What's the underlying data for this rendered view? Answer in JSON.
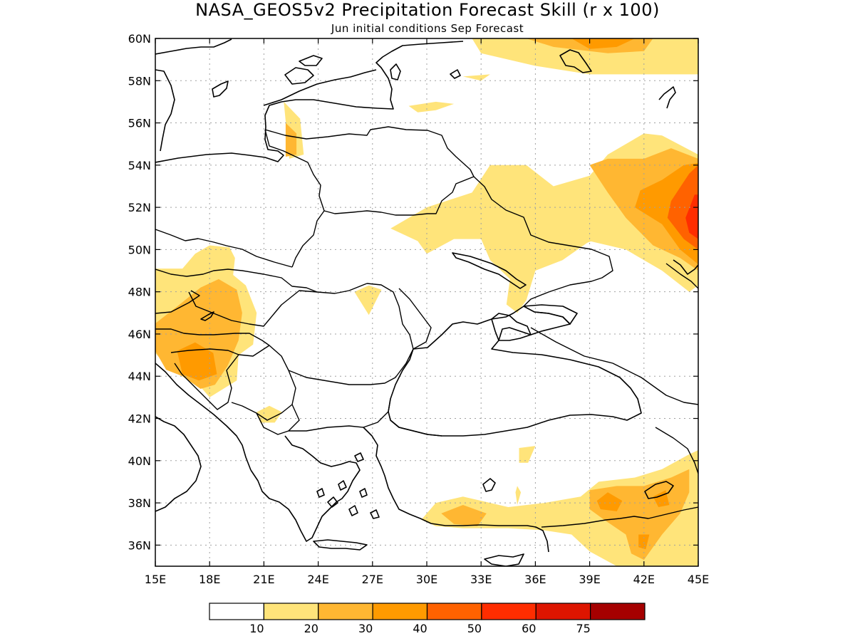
{
  "title": "NASA_GEOS5v2 Precipitation Forecast Skill (r x 100)",
  "subtitle": "Jun initial conditions  Sep Forecast",
  "map": {
    "lon_range": [
      15,
      45
    ],
    "lat_range": [
      35,
      60
    ],
    "lon_ticks": [
      "15E",
      "18E",
      "21E",
      "24E",
      "27E",
      "30E",
      "33E",
      "36E",
      "39E",
      "42E",
      "45E"
    ],
    "lat_ticks": [
      "60N",
      "58N",
      "56N",
      "54N",
      "52N",
      "50N",
      "48N",
      "46N",
      "44N",
      "42N",
      "40N",
      "38N",
      "36N"
    ],
    "grid": true
  },
  "colorbar": {
    "colors": [
      "#ffffff",
      "#ffe47a",
      "#ffb732",
      "#ff9a00",
      "#ff6200",
      "#ff2d00",
      "#dd1500",
      "#a50000"
    ],
    "labels": [
      "10",
      "20",
      "30",
      "40",
      "50",
      "60",
      "75"
    ]
  },
  "chart_data": {
    "type": "heatmap",
    "title": "NASA_GEOS5v2 Precipitation Forecast Skill (r x 100)",
    "subtitle": "Jun initial conditions  Sep Forecast",
    "x_range": [
      15,
      45
    ],
    "y_range": [
      35,
      60
    ],
    "levels": [
      10,
      20,
      30,
      40,
      50,
      60,
      75
    ],
    "regions": [
      {
        "level": 10,
        "points": [
          [
            32.5,
            60
          ],
          [
            45,
            60
          ],
          [
            45,
            58.3
          ],
          [
            42,
            58.3
          ],
          [
            39,
            58.3
          ],
          [
            36,
            58.7
          ],
          [
            33,
            59.3
          ]
        ]
      },
      {
        "level": 20,
        "points": [
          [
            35.5,
            60
          ],
          [
            42.5,
            60
          ],
          [
            42,
            59.4
          ],
          [
            40,
            59.3
          ],
          [
            37,
            59.6
          ]
        ]
      },
      {
        "level": 30,
        "points": [
          [
            38,
            60
          ],
          [
            41.5,
            60
          ],
          [
            40.5,
            59.6
          ],
          [
            39,
            59.5
          ]
        ]
      },
      {
        "level": 10,
        "points": [
          [
            29,
            56.8
          ],
          [
            30.5,
            57
          ],
          [
            31.5,
            56.9
          ],
          [
            30.5,
            56.6
          ],
          [
            29.5,
            56.5
          ]
        ]
      },
      {
        "level": 10,
        "points": [
          [
            32,
            58.2
          ],
          [
            33.5,
            58.3
          ],
          [
            33,
            58
          ]
        ]
      },
      {
        "level": 10,
        "points": [
          [
            22.1,
            57
          ],
          [
            23,
            56.2
          ],
          [
            23.2,
            54.5
          ],
          [
            22.4,
            54.3
          ]
        ]
      },
      {
        "level": 20,
        "points": [
          [
            22.2,
            56
          ],
          [
            22.8,
            55.5
          ],
          [
            22.8,
            54.5
          ],
          [
            22.2,
            54.4
          ]
        ]
      },
      {
        "level": 10,
        "points": [
          [
            28,
            51
          ],
          [
            30,
            52
          ],
          [
            32.5,
            52.7
          ],
          [
            33.5,
            54
          ],
          [
            35.5,
            54
          ],
          [
            37,
            53
          ],
          [
            39,
            53.5
          ],
          [
            40,
            54.5
          ],
          [
            42,
            55.5
          ],
          [
            43,
            55.4
          ],
          [
            45,
            54.5
          ],
          [
            45,
            48.3
          ],
          [
            44.5,
            48
          ],
          [
            43,
            49
          ],
          [
            41,
            50
          ],
          [
            39,
            50.4
          ],
          [
            37.5,
            49.5
          ],
          [
            36,
            49
          ],
          [
            35.5,
            47.6
          ],
          [
            35,
            47
          ],
          [
            34.4,
            47.4
          ],
          [
            34.6,
            48.6
          ],
          [
            33.5,
            49.5
          ],
          [
            33,
            50.5
          ],
          [
            31.5,
            50.5
          ],
          [
            30,
            49.8
          ],
          [
            29.5,
            50.4
          ]
        ]
      },
      {
        "level": 20,
        "points": [
          [
            39,
            54
          ],
          [
            40,
            54.3
          ],
          [
            42,
            54.3
          ],
          [
            43.5,
            54.8
          ],
          [
            45,
            54.3
          ],
          [
            45,
            49
          ],
          [
            44,
            49.6
          ],
          [
            42.5,
            50.2
          ],
          [
            41,
            51.5
          ],
          [
            40,
            52.7
          ]
        ]
      },
      {
        "level": 30,
        "points": [
          [
            41.8,
            52.8
          ],
          [
            43,
            53.3
          ],
          [
            44.2,
            54
          ],
          [
            45,
            54.1
          ],
          [
            45,
            49.3
          ],
          [
            44,
            50
          ],
          [
            43,
            51.2
          ],
          [
            41.5,
            52
          ]
        ]
      },
      {
        "level": 40,
        "points": [
          [
            43.5,
            52.3
          ],
          [
            44.5,
            53.6
          ],
          [
            45,
            54
          ],
          [
            45,
            50
          ],
          [
            44.2,
            50.5
          ],
          [
            43.3,
            51.5
          ]
        ]
      },
      {
        "level": 50,
        "points": [
          [
            44.3,
            51.5
          ],
          [
            44.8,
            52.6
          ],
          [
            45,
            52.6
          ],
          [
            45,
            50.5
          ],
          [
            44.5,
            50.8
          ]
        ]
      },
      {
        "level": 10,
        "points": [
          [
            38,
            50.7
          ],
          [
            39.7,
            51.3
          ],
          [
            40,
            50.7
          ],
          [
            38.8,
            50.3
          ]
        ]
      },
      {
        "level": 10,
        "points": [
          [
            26,
            48
          ],
          [
            26.8,
            48.3
          ],
          [
            27.5,
            48.1
          ],
          [
            26.8,
            46.9
          ]
        ]
      },
      {
        "level": 10,
        "points": [
          [
            15,
            49.1
          ],
          [
            16.5,
            49.1
          ],
          [
            17.2,
            49.8
          ],
          [
            18,
            50.2
          ],
          [
            19.1,
            50.1
          ],
          [
            19.4,
            49.6
          ],
          [
            19.3,
            48.8
          ],
          [
            20,
            48.3
          ],
          [
            20.6,
            47
          ],
          [
            20.4,
            45.5
          ],
          [
            19.6,
            45
          ],
          [
            19.5,
            43.8
          ],
          [
            18,
            43
          ],
          [
            17.5,
            43.5
          ],
          [
            16.5,
            44.2
          ],
          [
            15.5,
            44.6
          ],
          [
            15,
            45.1
          ]
        ]
      },
      {
        "level": 20,
        "points": [
          [
            15,
            46.5
          ],
          [
            16.2,
            47.3
          ],
          [
            17.5,
            48.2
          ],
          [
            18.5,
            48.6
          ],
          [
            19.5,
            48.1
          ],
          [
            19.8,
            47
          ],
          [
            19.6,
            45.7
          ],
          [
            19,
            44.5
          ],
          [
            18.3,
            43.6
          ],
          [
            17.5,
            43.4
          ],
          [
            16.5,
            44
          ],
          [
            15.6,
            44.3
          ],
          [
            15,
            45.2
          ]
        ]
      },
      {
        "level": 30,
        "points": [
          [
            16.2,
            45.2
          ],
          [
            17.2,
            45.6
          ],
          [
            18.2,
            45.1
          ],
          [
            18.4,
            44.1
          ],
          [
            17.4,
            43.8
          ],
          [
            16.5,
            44.1
          ]
        ]
      },
      {
        "level": 10,
        "points": [
          [
            20.6,
            42.3
          ],
          [
            21.3,
            42.6
          ],
          [
            22,
            42.3
          ],
          [
            21.6,
            41.8
          ],
          [
            20.8,
            41.8
          ]
        ]
      },
      {
        "level": 10,
        "points": [
          [
            35.1,
            40.6
          ],
          [
            36,
            40.7
          ],
          [
            35.6,
            39.9
          ],
          [
            35.1,
            39.9
          ]
        ]
      },
      {
        "level": 10,
        "points": [
          [
            34.9,
            38.5
          ],
          [
            35,
            38.8
          ],
          [
            35.2,
            38.5
          ],
          [
            35,
            37.9
          ]
        ]
      },
      {
        "level": 10,
        "points": [
          [
            29.7,
            37.2
          ],
          [
            30.5,
            38
          ],
          [
            32,
            38.3
          ],
          [
            33,
            38.1
          ],
          [
            34.5,
            37.8
          ],
          [
            36.5,
            38
          ],
          [
            38.5,
            38.3
          ],
          [
            39.5,
            39
          ],
          [
            41.5,
            39.2
          ],
          [
            43,
            39.6
          ],
          [
            44.5,
            40.3
          ],
          [
            45,
            40.5
          ],
          [
            45,
            35
          ],
          [
            40.5,
            35
          ],
          [
            39,
            35.7
          ],
          [
            38,
            36.5
          ],
          [
            36.5,
            36.7
          ],
          [
            34.5,
            36.8
          ],
          [
            32,
            36.8
          ],
          [
            30.5,
            36.9
          ]
        ]
      },
      {
        "level": 20,
        "points": [
          [
            30.8,
            37.5
          ],
          [
            32,
            37.9
          ],
          [
            33.3,
            37.5
          ],
          [
            32.8,
            36.9
          ],
          [
            31.5,
            37
          ]
        ]
      },
      {
        "level": 20,
        "points": [
          [
            39,
            38.6
          ],
          [
            40.5,
            38.8
          ],
          [
            42,
            38.8
          ],
          [
            43.5,
            39.2
          ],
          [
            44.5,
            39.6
          ],
          [
            44.5,
            38.5
          ],
          [
            44,
            37.5
          ],
          [
            43,
            36.5
          ],
          [
            42,
            35.3
          ],
          [
            41.3,
            35.6
          ],
          [
            41,
            36.5
          ],
          [
            39.8,
            37.2
          ],
          [
            39,
            37.7
          ]
        ]
      },
      {
        "level": 30,
        "points": [
          [
            39.4,
            38.1
          ],
          [
            40,
            38.5
          ],
          [
            40.8,
            38.1
          ],
          [
            40.5,
            37.6
          ],
          [
            39.6,
            37.7
          ]
        ]
      },
      {
        "level": 30,
        "points": [
          [
            42.5,
            38.3
          ],
          [
            43.2,
            38.6
          ],
          [
            43.4,
            37.9
          ],
          [
            42.8,
            37.8
          ]
        ]
      },
      {
        "level": 30,
        "points": [
          [
            41.7,
            36.5
          ],
          [
            42.3,
            36.5
          ],
          [
            42.1,
            35.8
          ],
          [
            41.7,
            35.9
          ]
        ]
      }
    ]
  }
}
